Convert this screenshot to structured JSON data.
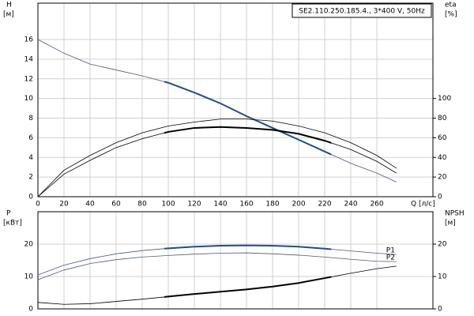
{
  "chart_data": [
    {
      "type": "line",
      "title": "SE2.110.250.185.4., 3*400 V, 50Hz",
      "ylabel": "H",
      "yunit": "[м]",
      "y2label": "eta",
      "y2unit": "[%]",
      "xlabel": "Q [л/с]",
      "xlim": [
        0,
        303
      ],
      "xticks": [
        0,
        20,
        40,
        60,
        80,
        100,
        120,
        140,
        160,
        180,
        200,
        220,
        240,
        260
      ],
      "ylim": [
        0,
        19.7
      ],
      "yticks": [
        0,
        2,
        4,
        6,
        8,
        10,
        12,
        14,
        16
      ],
      "y2lim": [
        0,
        197
      ],
      "y2ticks": [
        0,
        20,
        40,
        60,
        80,
        100
      ],
      "grid": true,
      "duty_range": [
        97,
        225
      ],
      "x": [
        0,
        20,
        40,
        60,
        80,
        100,
        120,
        140,
        160,
        180,
        200,
        220,
        240,
        260,
        275
      ],
      "series": [
        {
          "color": "#4a5a78",
          "highlight_color": "#1f4e8c",
          "highlight": true,
          "values": [
            16,
            14.6,
            13.5,
            12.9,
            12.3,
            11.6,
            10.6,
            9.5,
            8.2,
            7.0,
            5.8,
            4.6,
            3.4,
            2.4,
            1.5
          ]
        },
        {
          "axis": "y2",
          "color": "#000000",
          "highlight": false,
          "values": [
            0,
            27,
            42,
            55,
            65,
            72,
            76,
            79,
            79,
            77,
            72,
            65,
            55,
            42,
            29
          ]
        },
        {
          "axis": "y2",
          "color": "#000000",
          "highlight_color": "#000000",
          "highlight": true,
          "values": [
            0,
            23,
            37,
            50,
            59,
            66,
            70,
            71,
            70,
            68,
            64,
            57,
            48,
            36,
            24
          ]
        }
      ]
    },
    {
      "type": "line",
      "ylabel": "P",
      "yunit": "[кВт]",
      "y2label": "NPSH",
      "y2unit": "[м]",
      "xlim": [
        0,
        303
      ],
      "xticks": [
        0,
        20,
        40,
        60,
        80,
        100,
        120,
        140,
        160,
        180,
        200,
        220,
        240,
        260
      ],
      "ylim": [
        0,
        30
      ],
      "yticks": [
        0,
        10,
        20
      ],
      "y2lim": [
        0,
        30
      ],
      "y2ticks": [
        0,
        10,
        20
      ],
      "grid": true,
      "duty_range": [
        97,
        225
      ],
      "x": [
        0,
        20,
        40,
        60,
        80,
        100,
        120,
        140,
        160,
        180,
        200,
        220,
        240,
        260,
        275
      ],
      "series": [
        {
          "name": "P1",
          "color": "#4a5a78",
          "highlight_color": "#1f4e8c",
          "highlight": true,
          "values": [
            10.5,
            13.5,
            15.5,
            17,
            18,
            18.7,
            19.2,
            19.5,
            19.6,
            19.5,
            19.2,
            18.6,
            17.9,
            17.2,
            16.8
          ]
        },
        {
          "name": "P2",
          "color": "#4a5a78",
          "highlight": false,
          "values": [
            9,
            12,
            14,
            15.2,
            16,
            16.5,
            16.9,
            17.2,
            17.3,
            17,
            16.6,
            16,
            15.3,
            14.7,
            14.6
          ]
        },
        {
          "axis": "y2",
          "color": "#000000",
          "highlight_color": "#000000",
          "highlight": true,
          "values": [
            2,
            1.4,
            1.6,
            2.3,
            3,
            3.8,
            4.6,
            5.3,
            6,
            6.9,
            8,
            9.5,
            11,
            12.4,
            13.2
          ]
        }
      ]
    }
  ]
}
